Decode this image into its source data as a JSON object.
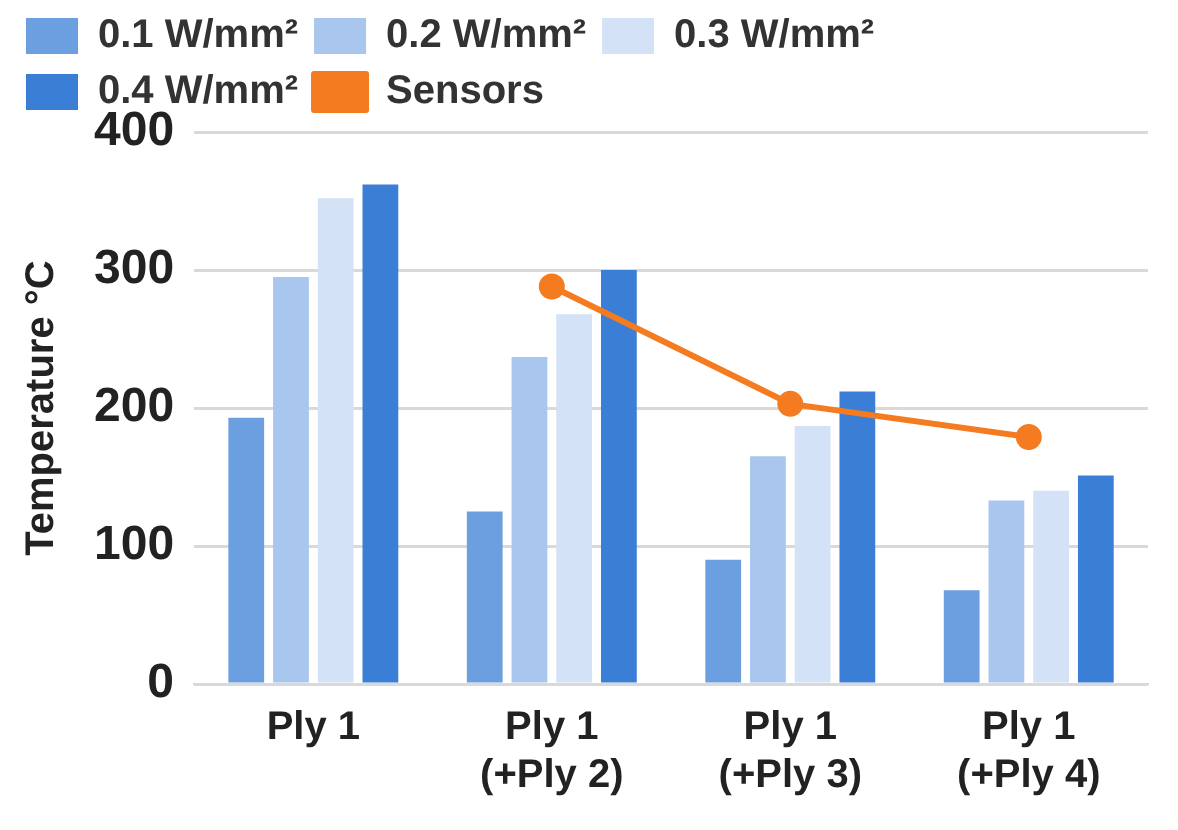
{
  "chart_data": {
    "type": "bar",
    "ylabel": "Temperature °C",
    "categories": [
      "Ply 1",
      "Ply 1\n(+Ply 2)",
      "Ply 1\n(+Ply 3)",
      "Ply 1\n(+Ply 4)"
    ],
    "series": [
      {
        "name": "0.1 W/mm²",
        "color": "#6b9fe0",
        "values": [
          193,
          125,
          90,
          68
        ]
      },
      {
        "name": "0.2 W/mm²",
        "color": "#a8c6ee",
        "values": [
          295,
          237,
          165,
          133
        ]
      },
      {
        "name": "0.3 W/mm²",
        "color": "#d3e2f6",
        "values": [
          352,
          268,
          187,
          140
        ]
      },
      {
        "name": "0.4 W/mm²",
        "color": "#3a7fd5",
        "values": [
          362,
          300,
          212,
          151
        ]
      },
      {
        "name": "Sensors",
        "type": "line",
        "color": "#f47b20",
        "marker": "circle",
        "values": [
          null,
          288,
          203,
          179
        ]
      }
    ],
    "ylim": [
      0,
      400
    ],
    "yticks": [
      0,
      100,
      200,
      300,
      400
    ],
    "grid": "y",
    "legend": "top"
  }
}
